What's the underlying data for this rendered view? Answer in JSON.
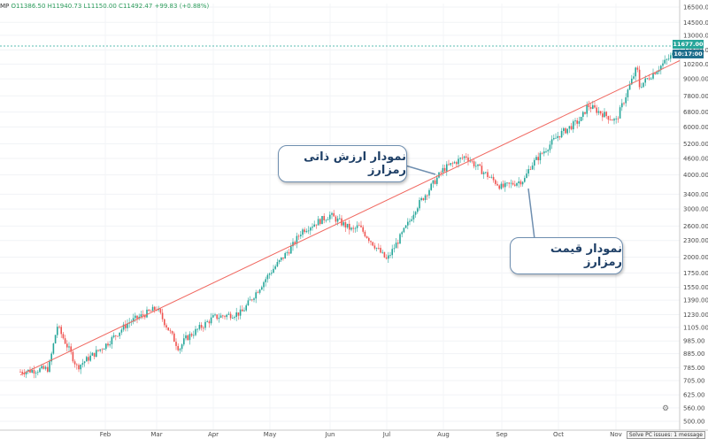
{
  "header": {
    "symbol": "MP",
    "ohlc": "O11386.50 H11940.73 L11150.00 C11492.47 +99.83 (+0.88%)"
  },
  "price_badges": {
    "last_price": "11677.00",
    "countdown": "10:17:00",
    "last_color": "#26a69a",
    "countdown_color": "#1f6e8c"
  },
  "callouts": {
    "intrinsic": "نمودار ارزش ذاتی رمزارز",
    "price": "نمودار قیمت رمزارز"
  },
  "footer": {
    "button": "Solve PC issues: 1 message"
  },
  "colors": {
    "up": "#26a69a",
    "down": "#ef5350",
    "trendline": "#f0675f",
    "price_line": "#26a69a",
    "callout_border": "#6f8fb0"
  },
  "chart_data": {
    "type": "candlestick",
    "title": "",
    "xlabel": "",
    "ylabel": "",
    "scale": "log",
    "x_categories": [
      "Feb",
      "Mar",
      "Apr",
      "May",
      "Jun",
      "Jul",
      "Aug",
      "Sep",
      "Oct",
      "Nov"
    ],
    "y_ticks": [
      16500,
      14500,
      13000,
      11500,
      10200,
      9000,
      7800,
      6800,
      6000,
      5200,
      4600,
      4000,
      3400,
      3000,
      2600,
      2300,
      2000,
      1750,
      1550,
      1390,
      1230,
      1105,
      985,
      885,
      785,
      705,
      625,
      560,
      500
    ],
    "ylim": [
      470,
      18000
    ],
    "current_price": 11677,
    "series": [
      {
        "kind": "price",
        "approx_path": [
          {
            "x": "Jan-start",
            "y": 760
          },
          {
            "x": "Jan-mid",
            "y": 780
          },
          {
            "x": "Jan-end",
            "y": 880
          },
          {
            "x": "Jan-peak",
            "y": 1120
          },
          {
            "x": "Feb-start",
            "y": 790
          },
          {
            "x": "Feb-mid",
            "y": 950
          },
          {
            "x": "Mar-start",
            "y": 1150
          },
          {
            "x": "Mar-mid",
            "y": 1300
          },
          {
            "x": "Mar-end",
            "y": 920
          },
          {
            "x": "Apr-start",
            "y": 1000
          },
          {
            "x": "Apr-mid",
            "y": 1200
          },
          {
            "x": "May-start",
            "y": 1250
          },
          {
            "x": "May-mid",
            "y": 1750
          },
          {
            "x": "May-end",
            "y": 2200
          },
          {
            "x": "Jun-start",
            "y": 2500
          },
          {
            "x": "Jun-mid",
            "y": 2850
          },
          {
            "x": "Jun-end",
            "y": 2500
          },
          {
            "x": "Jul-start",
            "y": 2600
          },
          {
            "x": "Jul-mid",
            "y": 1950
          },
          {
            "x": "Jul-end",
            "y": 2700
          },
          {
            "x": "Aug-start",
            "y": 3000
          },
          {
            "x": "Aug-mid",
            "y": 4200
          },
          {
            "x": "Aug-end",
            "y": 4700
          },
          {
            "x": "Sep-start",
            "y": 4400
          },
          {
            "x": "Sep-mid",
            "y": 3600
          },
          {
            "x": "Sep-end",
            "y": 3850
          },
          {
            "x": "Oct-start",
            "y": 4300
          },
          {
            "x": "Oct-mid",
            "y": 5600
          },
          {
            "x": "Oct-end",
            "y": 6400
          },
          {
            "x": "Nov-start",
            "y": 7200
          },
          {
            "x": "Nov-mid",
            "y": 6300
          },
          {
            "x": "Nov-end",
            "y": 8400
          },
          {
            "x": "Dec-start",
            "y": 10000
          },
          {
            "x": "Dec-now",
            "y": 11677
          }
        ]
      },
      {
        "kind": "trendline",
        "from": {
          "x": "Jan-start",
          "y": 740
        },
        "to": {
          "x": "Dec-now",
          "y": 10500
        }
      }
    ]
  }
}
